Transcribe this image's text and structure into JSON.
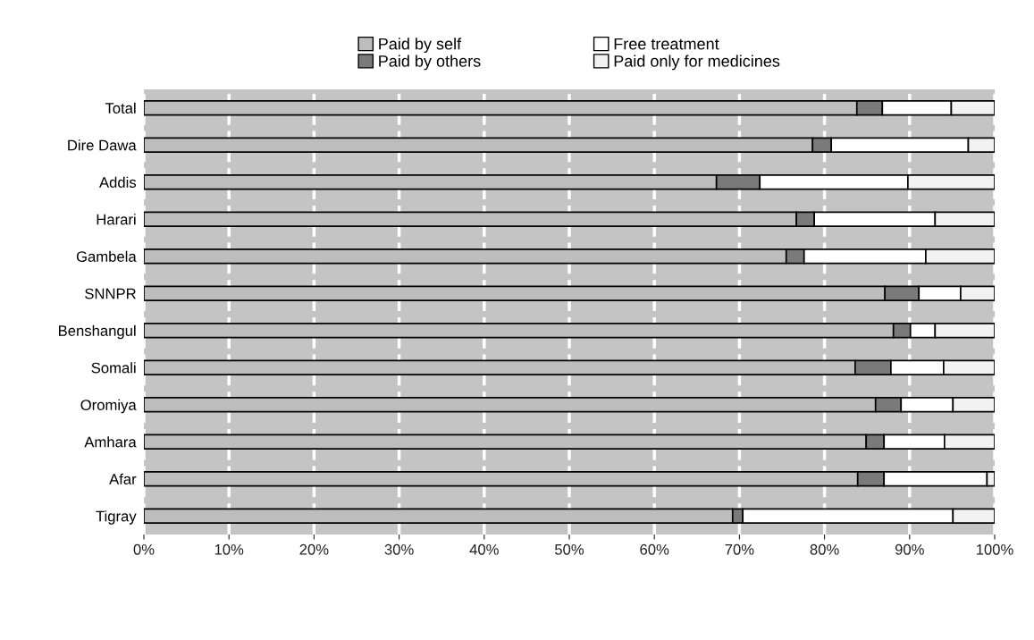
{
  "chart_data": {
    "type": "bar",
    "orientation": "horizontal",
    "stacked": true,
    "categories": [
      "Total",
      "Dire Dawa",
      "Addis",
      "Harari",
      "Gambela",
      "SNNPR",
      "Benshangul",
      "Somali",
      "Oromiya",
      "Amhara",
      "Afar",
      "Tigray"
    ],
    "series": [
      {
        "name": "Paid by self",
        "color": "#bdbdbd",
        "values": [
          83.8,
          78.6,
          67.3,
          76.7,
          75.5,
          87.1,
          88.1,
          83.6,
          86.0,
          84.9,
          83.9,
          69.2
        ]
      },
      {
        "name": "Paid by others",
        "color": "#7a7a7a",
        "values": [
          3.0,
          2.2,
          5.1,
          2.1,
          2.1,
          4.0,
          2.0,
          4.2,
          3.0,
          2.1,
          3.1,
          1.2
        ]
      },
      {
        "name": "Free treatment",
        "color": "#ffffff",
        "values": [
          8.1,
          16.1,
          17.4,
          14.2,
          14.3,
          4.9,
          2.9,
          6.2,
          6.1,
          7.1,
          12.1,
          24.7
        ]
      },
      {
        "name": "Paid only for medicines",
        "color": "#f2f2f2",
        "values": [
          5.1,
          3.1,
          10.2,
          7.0,
          8.1,
          4.0,
          7.0,
          6.0,
          4.9,
          5.9,
          0.9,
          4.9
        ]
      }
    ],
    "xlim": [
      0,
      100
    ],
    "xticks": [
      {
        "value": 0,
        "label": "0%"
      },
      {
        "value": 10,
        "label": "10%"
      },
      {
        "value": 20,
        "label": "20%"
      },
      {
        "value": 30,
        "label": "30%"
      },
      {
        "value": 40,
        "label": "40%"
      },
      {
        "value": 50,
        "label": "50%"
      },
      {
        "value": 60,
        "label": "60%"
      },
      {
        "value": 70,
        "label": "70%"
      },
      {
        "value": 80,
        "label": "80%"
      },
      {
        "value": 90,
        "label": "90%"
      },
      {
        "value": 100,
        "label": "100%"
      }
    ],
    "grid": "x",
    "legend": "top"
  }
}
